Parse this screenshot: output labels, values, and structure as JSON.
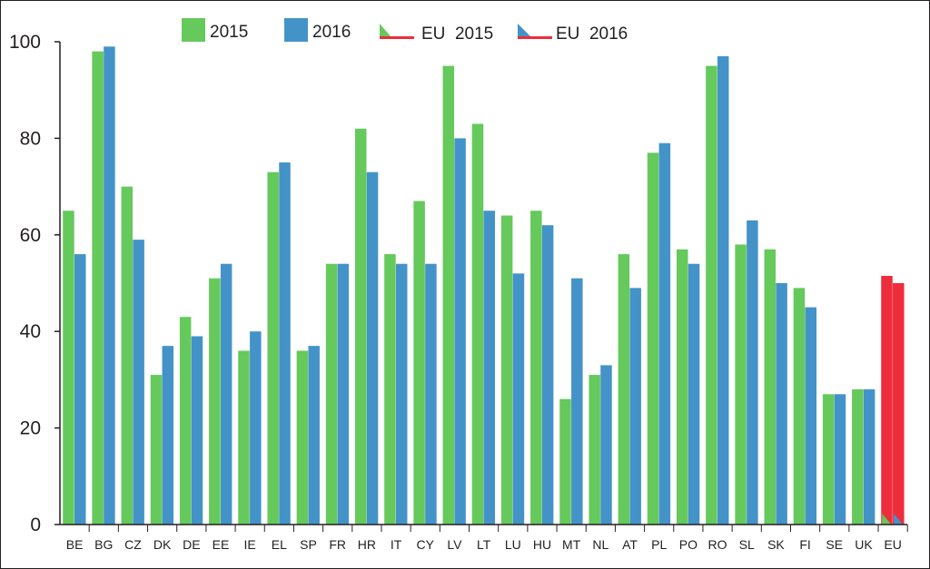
{
  "colors": {
    "series_2015": "#65c95c",
    "series_2016": "#4393c9",
    "eu_bar": "#ee2d3c",
    "axis": "#231f20"
  },
  "legend": {
    "items": [
      {
        "label": "2015",
        "key": "series_2015",
        "icon": "green-square"
      },
      {
        "label": "2016",
        "key": "series_2016",
        "icon": "blue-square"
      },
      {
        "label": "EU  2015",
        "key": "eu_2015",
        "icon": "green-wedge-red-line"
      },
      {
        "label": "EU  2016",
        "key": "eu_2016",
        "icon": "blue-wedge-red-line"
      }
    ]
  },
  "chart_data": {
    "type": "bar",
    "categories": [
      "BE",
      "BG",
      "CZ",
      "DK",
      "DE",
      "EE",
      "IE",
      "EL",
      "SP",
      "FR",
      "HR",
      "IT",
      "CY",
      "LV",
      "LT",
      "LU",
      "HU",
      "MT",
      "NL",
      "AT",
      "PL",
      "PO",
      "RO",
      "SL",
      "SK",
      "FI",
      "SE",
      "UK",
      "EU"
    ],
    "series": [
      {
        "name": "2015",
        "values": [
          65,
          98,
          70,
          31,
          43,
          51,
          36,
          73,
          36,
          54,
          82,
          56,
          67,
          95,
          83,
          64,
          65,
          26,
          31,
          56,
          77,
          57,
          95,
          58,
          57,
          49,
          27,
          28,
          51.5
        ]
      },
      {
        "name": "2016",
        "values": [
          56,
          99,
          59,
          37,
          39,
          54,
          40,
          75,
          37,
          54,
          73,
          54,
          54,
          80,
          65,
          52,
          62,
          51,
          33,
          49,
          79,
          54,
          97,
          63,
          50,
          45,
          27,
          28,
          50
        ]
      }
    ],
    "highlight_category": "EU",
    "yticks": [
      0,
      20,
      40,
      60,
      80,
      100
    ],
    "ylim": [
      0,
      100
    ],
    "xlabel": "",
    "ylabel": "",
    "title": ""
  }
}
